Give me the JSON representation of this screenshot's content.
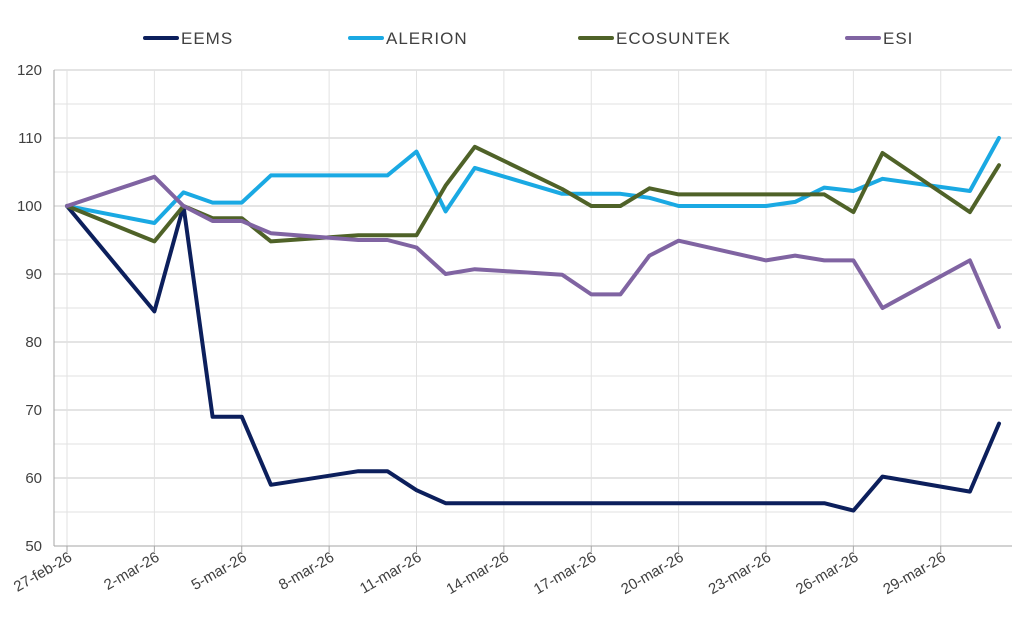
{
  "chart_data": {
    "type": "line",
    "title": "",
    "xlabel": "",
    "ylabel": "",
    "ylim": [
      50,
      120
    ],
    "y_ticks": [
      50,
      60,
      70,
      80,
      90,
      100,
      110,
      120
    ],
    "grid": true,
    "legend_position": "top",
    "x": [
      "27-feb-26",
      "2-mar-26",
      "3-mar-26",
      "4-mar-26",
      "5-mar-26",
      "6-mar-26",
      "9-mar-26",
      "10-mar-26",
      "11-mar-26",
      "12-mar-26",
      "13-mar-26",
      "16-mar-26",
      "17-mar-26",
      "18-mar-26",
      "19-mar-26",
      "20-mar-26",
      "23-mar-26",
      "24-mar-26",
      "25-mar-26",
      "26-mar-26",
      "27-mar-26",
      "30-mar-26",
      "31-mar-26"
    ],
    "x_tick_labels": [
      {
        "label": "27-feb-26",
        "at": "27-feb-26"
      },
      {
        "label": "2-mar-26",
        "at": "2-mar-26"
      },
      {
        "label": "5-mar-26",
        "at": "5-mar-26"
      },
      {
        "label": "8-mar-26",
        "at": "8-mar-26"
      },
      {
        "label": "11-mar-26",
        "at": "11-mar-26"
      },
      {
        "label": "14-mar-26",
        "at": "14-mar-26"
      },
      {
        "label": "17-mar-26",
        "at": "17-mar-26"
      },
      {
        "label": "20-mar-26",
        "at": "20-mar-26"
      },
      {
        "label": "23-mar-26",
        "at": "23-mar-26"
      },
      {
        "label": "26-mar-26",
        "at": "26-mar-26"
      },
      {
        "label": "29-mar-26",
        "at": "29-mar-26"
      }
    ],
    "series": [
      {
        "name": "EEMS",
        "color": "#0c1f5c",
        "values": [
          100,
          84.5,
          100,
          69,
          69,
          59,
          61,
          61,
          58.2,
          56.3,
          56.3,
          56.3,
          56.3,
          56.3,
          56.3,
          56.3,
          56.3,
          56.3,
          56.3,
          55.2,
          60.2,
          58,
          68
        ]
      },
      {
        "name": "ALERION",
        "color": "#1aa9e3",
        "values": [
          100,
          97.5,
          102,
          100.5,
          100.5,
          104.5,
          104.5,
          104.5,
          108,
          99.2,
          105.6,
          101.8,
          101.8,
          101.8,
          101.2,
          100,
          100,
          100.6,
          102.7,
          102.2,
          104,
          102.2,
          110
        ]
      },
      {
        "name": "ECOSUNTEK",
        "color": "#4f6228",
        "values": [
          100,
          94.8,
          100,
          98.2,
          98.2,
          94.8,
          95.7,
          95.7,
          95.7,
          103,
          108.7,
          102.5,
          100,
          100,
          102.6,
          101.7,
          101.7,
          101.7,
          101.7,
          99.1,
          107.8,
          99.1,
          106
        ]
      },
      {
        "name": "ESI",
        "color": "#8064a2",
        "values": [
          100,
          104.3,
          100,
          97.8,
          97.8,
          96,
          95,
          95,
          93.9,
          90,
          90.7,
          89.9,
          87,
          87,
          92.7,
          94.9,
          92,
          92.7,
          92,
          92,
          85,
          92,
          82.2
        ]
      }
    ]
  }
}
